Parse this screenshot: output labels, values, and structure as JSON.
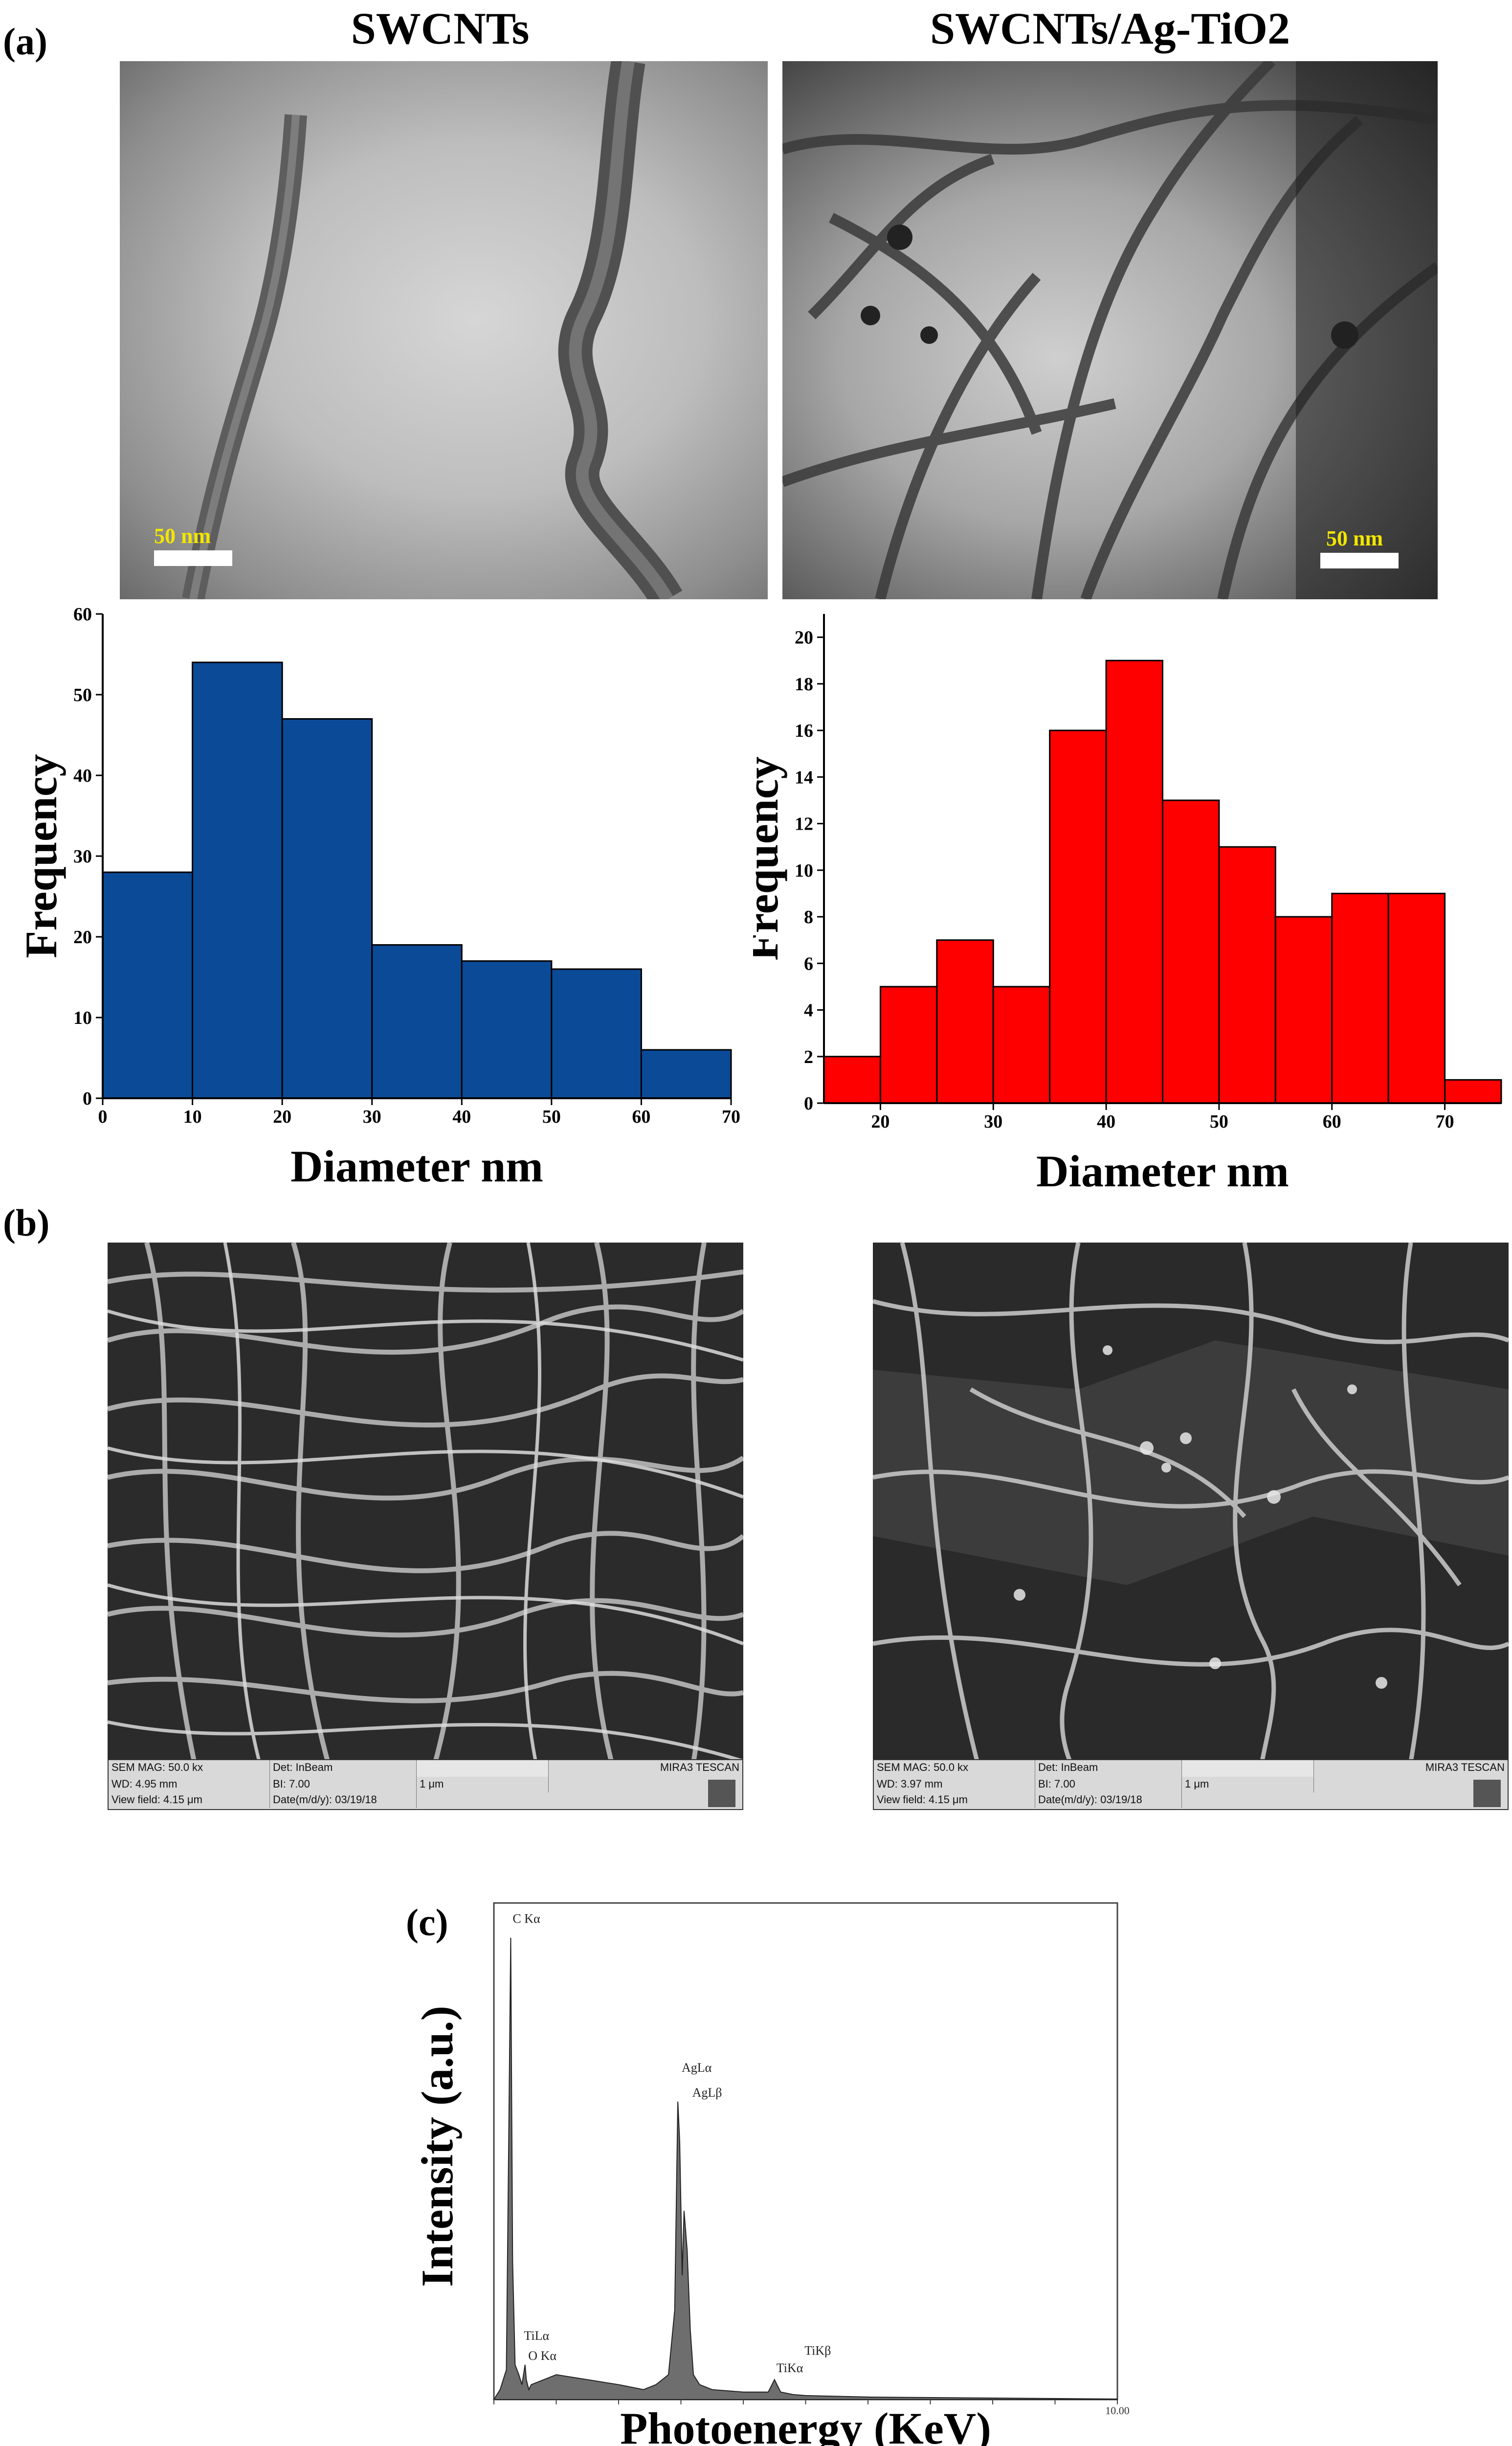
{
  "figure": {
    "panel_a": {
      "label": "(a)",
      "tem_left_title": "SWCNTs",
      "tem_right_title": "SWCNTs/Ag-TiO2",
      "tem_left_scale": "50 nm",
      "tem_right_scale": "50 nm"
    },
    "panel_b": {
      "label": "(b)",
      "sem_left": {
        "mag": "SEM MAG: 50.0 kx",
        "det": "Det: InBeam",
        "brand": "MIRA3 TESCAN",
        "wd": "WD: 4.95 mm",
        "bi": "BI: 7.00",
        "scale": "1 μm",
        "view_field": "View field: 4.15 μm",
        "date": "Date(m/d/y): 03/19/18"
      },
      "sem_right": {
        "mag": "SEM MAG: 50.0 kx",
        "det": "Det: InBeam",
        "brand": "MIRA3 TESCAN",
        "wd": "WD: 3.97 mm",
        "bi": "BI: 7.00",
        "scale": "1 μm",
        "view_field": "View field: 4.15 μm",
        "date": "Date(m/d/y): 03/19/18"
      }
    },
    "panel_c": {
      "label": "(c)"
    }
  },
  "chart_data": [
    {
      "type": "bar",
      "name": "hist-swcnts",
      "title": "",
      "xlabel": "Diameter nm",
      "ylabel": "Frequency",
      "bin_edges": [
        0,
        10,
        20,
        30,
        40,
        50,
        60,
        70
      ],
      "values": [
        28,
        54,
        47,
        19,
        17,
        16,
        6
      ],
      "xlim": [
        0,
        70
      ],
      "ylim": [
        0,
        60
      ],
      "xticks": [
        0,
        10,
        20,
        30,
        40,
        50,
        60,
        70
      ],
      "yticks": [
        0,
        10,
        20,
        30,
        40,
        50,
        60
      ],
      "color": "#0b4a96"
    },
    {
      "type": "bar",
      "name": "hist-swcnts-ag-tio2",
      "title": "",
      "xlabel": "Diameter nm",
      "ylabel": "Frequency",
      "bin_edges": [
        15,
        20,
        25,
        30,
        35,
        40,
        45,
        50,
        55,
        60,
        65,
        70,
        75
      ],
      "values": [
        2,
        5,
        7,
        5,
        16,
        19,
        13,
        11,
        8,
        9,
        9,
        1
      ],
      "xlim": [
        15,
        75
      ],
      "ylim": [
        0,
        21
      ],
      "xticks": [
        20,
        30,
        40,
        50,
        60,
        70
      ],
      "yticks": [
        0,
        2,
        4,
        6,
        8,
        10,
        12,
        14,
        16,
        18,
        20
      ],
      "color": "#ff0000"
    },
    {
      "type": "line",
      "name": "eds-spectrum",
      "title": "",
      "xlabel": "Photoenergy (KeV)",
      "ylabel": "Intensity (a.u.)",
      "xlim": [
        0,
        10
      ],
      "ylim": [
        0,
        100
      ],
      "x_end_label": "10.00",
      "x": [
        0,
        0.1,
        0.2,
        0.24,
        0.27,
        0.3,
        0.34,
        0.4,
        0.45,
        0.5,
        0.52,
        0.56,
        0.6,
        0.8,
        1.0,
        1.5,
        2.0,
        2.4,
        2.6,
        2.8,
        2.9,
        2.95,
        2.98,
        3.02,
        3.05,
        3.1,
        3.15,
        3.2,
        3.3,
        3.5,
        4.0,
        4.4,
        4.5,
        4.6,
        4.8,
        5.0,
        6.0,
        7.0,
        8.0,
        9.0,
        10.0
      ],
      "y": [
        0,
        2,
        6,
        55,
        93,
        28,
        7,
        5,
        3,
        7,
        4,
        2,
        3,
        4,
        5,
        4,
        3,
        2,
        3,
        5,
        18,
        60,
        52,
        25,
        38,
        30,
        14,
        5,
        3,
        2,
        1.5,
        1.5,
        4,
        1.5,
        1,
        0.8,
        0.5,
        0.4,
        0.3,
        0.2,
        0.1
      ],
      "peak_labels": [
        {
          "text": "C Kα",
          "x": 0.27,
          "y": 96
        },
        {
          "text": "AgLα",
          "x": 2.98,
          "y": 66
        },
        {
          "text": "AgLβ",
          "x": 3.15,
          "y": 61
        },
        {
          "text": "TiLα",
          "x": 0.45,
          "y": 12
        },
        {
          "text": "O Kα",
          "x": 0.52,
          "y": 8
        },
        {
          "text": "TiKβ",
          "x": 4.95,
          "y": 9
        },
        {
          "text": "TiKα",
          "x": 4.5,
          "y": 5.5
        }
      ]
    }
  ]
}
